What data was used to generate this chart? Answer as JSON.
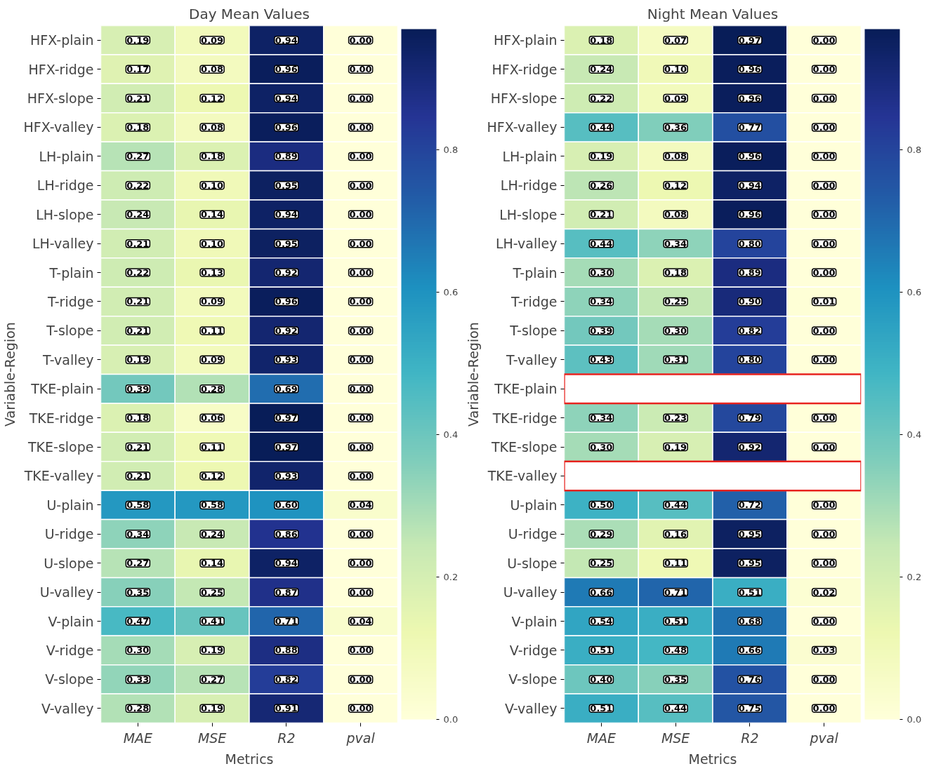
{
  "chart_data": [
    {
      "type": "heatmap",
      "title": "Day Mean Values",
      "xlabel": "Metrics",
      "ylabel": "Variable-Region",
      "categories": [
        "MAE",
        "MSE",
        "R2",
        "pval"
      ],
      "y_categories": [
        "HFX-plain",
        "HFX-ridge",
        "HFX-slope",
        "HFX-valley",
        "LH-plain",
        "LH-ridge",
        "LH-slope",
        "LH-valley",
        "T-plain",
        "T-ridge",
        "T-slope",
        "T-valley",
        "TKE-plain",
        "TKE-ridge",
        "TKE-slope",
        "TKE-valley",
        "U-plain",
        "U-ridge",
        "U-slope",
        "U-valley",
        "V-plain",
        "V-ridge",
        "V-slope",
        "V-valley"
      ],
      "cells": [
        [
          0.19,
          0.09,
          0.94,
          0.0
        ],
        [
          0.17,
          0.08,
          0.96,
          0.0
        ],
        [
          0.21,
          0.12,
          0.94,
          0.0
        ],
        [
          0.18,
          0.08,
          0.96,
          0.0
        ],
        [
          0.27,
          0.18,
          0.89,
          0.0
        ],
        [
          0.22,
          0.1,
          0.95,
          0.0
        ],
        [
          0.24,
          0.14,
          0.94,
          0.0
        ],
        [
          0.21,
          0.1,
          0.95,
          0.0
        ],
        [
          0.22,
          0.13,
          0.92,
          0.0
        ],
        [
          0.21,
          0.09,
          0.96,
          0.0
        ],
        [
          0.21,
          0.11,
          0.92,
          0.0
        ],
        [
          0.19,
          0.09,
          0.93,
          0.0
        ],
        [
          0.39,
          0.28,
          0.69,
          0.0
        ],
        [
          0.18,
          0.06,
          0.97,
          0.0
        ],
        [
          0.21,
          0.11,
          0.97,
          0.0
        ],
        [
          0.21,
          0.12,
          0.93,
          0.0
        ],
        [
          0.58,
          0.58,
          0.6,
          0.04
        ],
        [
          0.34,
          0.24,
          0.86,
          0.0
        ],
        [
          0.27,
          0.14,
          0.94,
          0.0
        ],
        [
          0.35,
          0.25,
          0.87,
          0.0
        ],
        [
          0.47,
          0.41,
          0.71,
          0.04
        ],
        [
          0.3,
          0.19,
          0.88,
          0.0
        ],
        [
          0.33,
          0.27,
          0.82,
          0.0
        ],
        [
          0.28,
          0.19,
          0.91,
          0.0
        ]
      ],
      "cell_labels": [
        [
          "0.19",
          "0.09",
          "0.94",
          "0.00"
        ],
        [
          "0.17",
          "0.08",
          "0.96",
          "0.00"
        ],
        [
          "0.21",
          "0.12",
          "0.94",
          "0.00"
        ],
        [
          "0.18",
          "0.08",
          "0.96",
          "0.00"
        ],
        [
          "0.27",
          "0.18",
          "0.89",
          "0.00"
        ],
        [
          "0.22",
          "0.10",
          "0.95",
          "0.00"
        ],
        [
          "0.24",
          "0.14",
          "0.94",
          "0.00"
        ],
        [
          "0.21",
          "0.10",
          "0.95",
          "0.00"
        ],
        [
          "0.22",
          "0.13",
          "0.92",
          "0.00"
        ],
        [
          "0.21",
          "0.09",
          "0.96",
          "0.00"
        ],
        [
          "0.21",
          "0.11",
          "0.92",
          "0.00"
        ],
        [
          "0.19",
          "0.09",
          "0.93",
          "0.00"
        ],
        [
          "0.39",
          "0.28",
          "0.69",
          "0.00"
        ],
        [
          "0.18",
          "0.06",
          "0.97",
          "0.00"
        ],
        [
          "0.21",
          "0.11",
          "0.97",
          "0.00"
        ],
        [
          "0.21",
          "0.12",
          "0.93",
          "0.00"
        ],
        [
          "0.58",
          "0.58",
          "0.60",
          "0.04"
        ],
        [
          "0.34",
          "0.24",
          "0.86",
          "0.00"
        ],
        [
          "0.27",
          "0.14",
          "0.94",
          "0.00"
        ],
        [
          "0.35",
          "0.25",
          "0.87",
          "0.00"
        ],
        [
          "0.47",
          "0.41",
          "0.71",
          "0.04"
        ],
        [
          "0.30",
          "0.19",
          "0.88",
          "0.00"
        ],
        [
          "0.33",
          "0.27",
          "0.82",
          "0.00"
        ],
        [
          "0.28",
          "0.19",
          "0.91",
          "0.00"
        ]
      ],
      "clim": [
        0,
        0.97
      ],
      "cticks": [
        {
          "value": 0,
          "label": "0.0"
        },
        0.2,
        0.4,
        0.6,
        0.8
      ]
    },
    {
      "type": "heatmap",
      "title": "Night Mean Values",
      "xlabel": "Metrics",
      "ylabel": "Variable-Region",
      "categories": [
        "MAE",
        "MSE",
        "R2",
        "pval"
      ],
      "y_categories": [
        "HFX-plain",
        "HFX-ridge",
        "HFX-slope",
        "HFX-valley",
        "LH-plain",
        "LH-ridge",
        "LH-slope",
        "LH-valley",
        "T-plain",
        "T-ridge",
        "T-slope",
        "T-valley",
        "TKE-plain",
        "TKE-ridge",
        "TKE-slope",
        "TKE-valley",
        "U-plain",
        "U-ridge",
        "U-slope",
        "U-valley",
        "V-plain",
        "V-ridge",
        "V-slope",
        "V-valley"
      ],
      "cells": [
        [
          0.18,
          0.07,
          0.97,
          0.0
        ],
        [
          0.24,
          0.1,
          0.96,
          0.0
        ],
        [
          0.22,
          0.09,
          0.96,
          0.0
        ],
        [
          0.44,
          0.36,
          0.77,
          0.0
        ],
        [
          0.19,
          0.08,
          0.96,
          0.0
        ],
        [
          0.26,
          0.12,
          0.94,
          0.0
        ],
        [
          0.21,
          0.08,
          0.96,
          0.0
        ],
        [
          0.44,
          0.34,
          0.8,
          0.0
        ],
        [
          0.3,
          0.18,
          0.89,
          0.0
        ],
        [
          0.34,
          0.25,
          0.9,
          0.01
        ],
        [
          0.39,
          0.3,
          0.82,
          0.0
        ],
        [
          0.43,
          0.31,
          0.8,
          0.0
        ],
        [
          null,
          null,
          null,
          null
        ],
        [
          0.34,
          0.23,
          0.79,
          0.0
        ],
        [
          0.3,
          0.19,
          0.92,
          0.0
        ],
        [
          null,
          null,
          null,
          null
        ],
        [
          0.5,
          0.44,
          0.72,
          0.0
        ],
        [
          0.29,
          0.16,
          0.95,
          0.0
        ],
        [
          0.25,
          0.11,
          0.95,
          0.0
        ],
        [
          0.66,
          0.71,
          0.51,
          0.02
        ],
        [
          0.54,
          0.51,
          0.68,
          0.0
        ],
        [
          0.51,
          0.48,
          0.66,
          0.03
        ],
        [
          0.4,
          0.35,
          0.76,
          0.0
        ],
        [
          0.51,
          0.44,
          0.75,
          0.0
        ]
      ],
      "cell_labels": [
        [
          "0.18",
          "0.07",
          "0.97",
          "0.00"
        ],
        [
          "0.24",
          "0.10",
          "0.96",
          "0.00"
        ],
        [
          "0.22",
          "0.09",
          "0.96",
          "0.00"
        ],
        [
          "0.44",
          "0.36",
          "0.77",
          "0.00"
        ],
        [
          "0.19",
          "0.08",
          "0.96",
          "0.00"
        ],
        [
          "0.26",
          "0.12",
          "0.94",
          "0.00"
        ],
        [
          "0.21",
          "0.08",
          "0.96",
          "0.00"
        ],
        [
          "0.44",
          "0.34",
          "0.80",
          "0.00"
        ],
        [
          "0.30",
          "0.18",
          "0.89",
          "0.00"
        ],
        [
          "0.34",
          "0.25",
          "0.90",
          "0.01"
        ],
        [
          "0.39",
          "0.30",
          "0.82",
          "0.00"
        ],
        [
          "0.43",
          "0.31",
          "0.80",
          "0.00"
        ],
        [
          null,
          null,
          null,
          null
        ],
        [
          "0.34",
          "0.23",
          "0.79",
          "0.00"
        ],
        [
          "0.30",
          "0.19",
          "0.92",
          "0.00"
        ],
        [
          null,
          null,
          null,
          null
        ],
        [
          "0.50",
          "0.44",
          "0.72",
          "0.00"
        ],
        [
          "0.29",
          "0.16",
          "0.95",
          "0.00"
        ],
        [
          "0.25",
          "0.11",
          "0.95",
          "0.00"
        ],
        [
          "0.66",
          "0.71",
          "0.51",
          "0.02"
        ],
        [
          "0.54",
          "0.51",
          "0.68",
          "0.00"
        ],
        [
          "0.51",
          "0.48",
          "0.66",
          "0.03"
        ],
        [
          "0.40",
          "0.35",
          "0.76",
          "0.00"
        ],
        [
          "0.51",
          "0.44",
          "0.75",
          "0.00"
        ]
      ],
      "clim": [
        0,
        0.97
      ],
      "cticks": [
        {
          "value": 0,
          "label": "0.0"
        },
        0.2,
        0.4,
        0.6,
        0.8
      ]
    }
  ]
}
